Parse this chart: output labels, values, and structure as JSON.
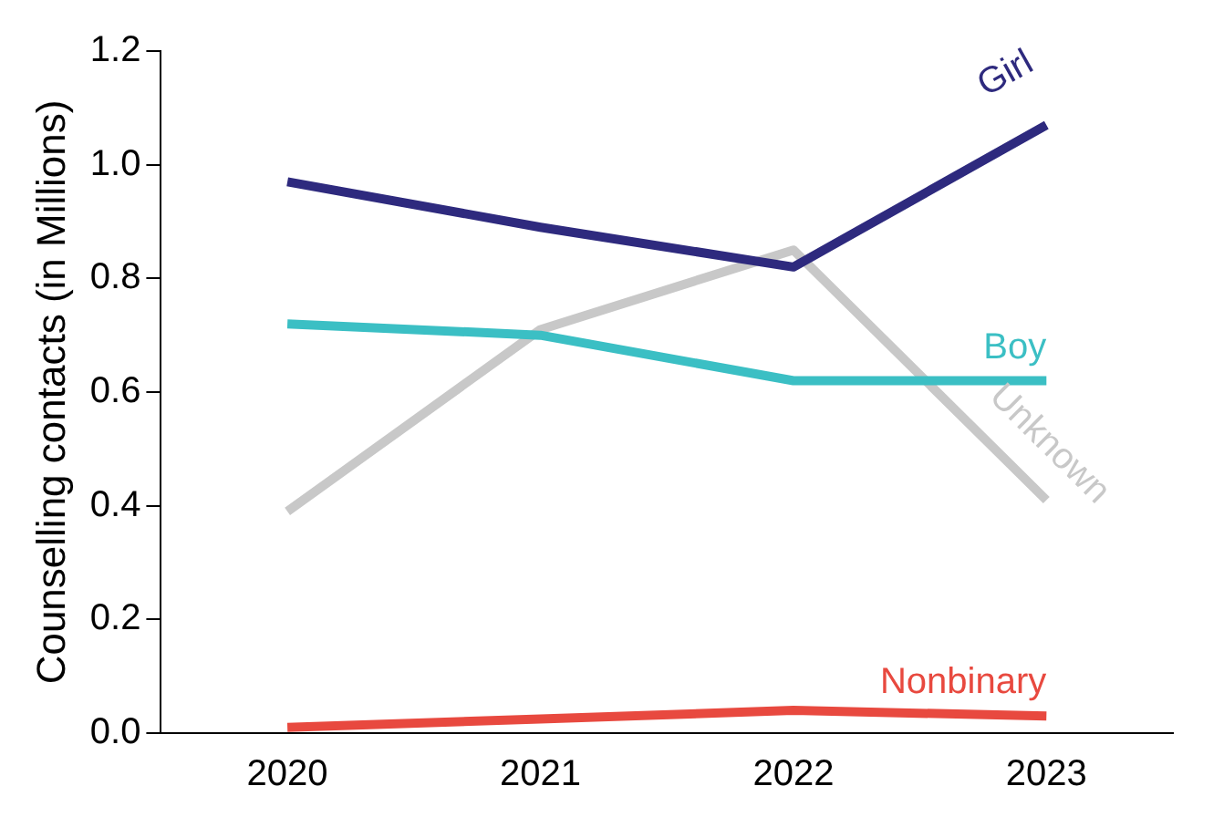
{
  "chart_data": {
    "type": "line",
    "ylabel": "Counselling contacts (in Millions)",
    "categories": [
      "2020",
      "2021",
      "2022",
      "2023"
    ],
    "series": [
      {
        "name": "Girl",
        "color": "#2e2a7e",
        "values": [
          0.97,
          0.89,
          0.82,
          1.07
        ]
      },
      {
        "name": "Boy",
        "color": "#3bbfc4",
        "values": [
          0.72,
          0.7,
          0.62,
          0.62
        ]
      },
      {
        "name": "Unknown",
        "color": "#c8c8c8",
        "values": [
          0.39,
          0.71,
          0.85,
          0.41
        ]
      },
      {
        "name": "Nonbinary",
        "color": "#e8493f",
        "values": [
          0.01,
          0.025,
          0.04,
          0.03
        ]
      }
    ],
    "ylim": [
      0,
      1.2
    ],
    "yticks": [
      {
        "value": 0,
        "label": "0.0"
      },
      0.2,
      0.4,
      0.6,
      0.8,
      {
        "value": 1,
        "label": "1.0"
      },
      1.2
    ],
    "grid": false,
    "legend": false,
    "marker": "none",
    "line_style": "solid"
  }
}
